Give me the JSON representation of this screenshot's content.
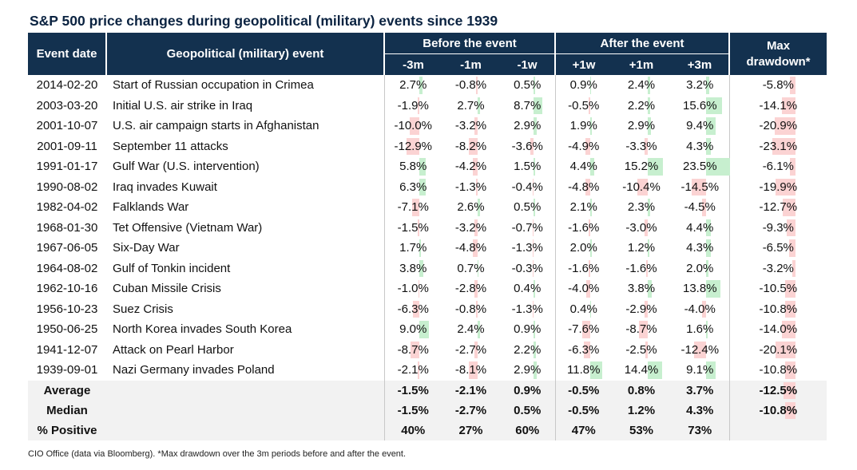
{
  "title": "S&P 500 price changes during geopolitical (military) events since 1939",
  "headers": {
    "event_date": "Event date",
    "event": "Geopolitical (military) event",
    "before": "Before the event",
    "after": "After the event",
    "max_dd": "Max drawdown*",
    "cols": [
      "-3m",
      "-1m",
      "-1w",
      "+1w",
      "+1m",
      "+3m"
    ]
  },
  "colors": {
    "header_bg": "#13314f",
    "positive": "#c7efcf",
    "negative": "#fbd3d3",
    "summary_bg": "#f2f2f2"
  },
  "rows": [
    {
      "date": "2014-02-20",
      "event": "Start of Russian occupation in Crimea",
      "vals": [
        "2.7%",
        "-0.8%",
        "0.5%",
        "0.9%",
        "2.4%",
        "3.2%"
      ],
      "dd": "-5.8%"
    },
    {
      "date": "2003-03-20",
      "event": "Initial U.S. air strike in Iraq",
      "vals": [
        "-1.9%",
        "2.7%",
        "8.7%",
        "-0.5%",
        "2.2%",
        "15.6%"
      ],
      "dd": "-14.1%"
    },
    {
      "date": "2001-10-07",
      "event": "U.S. air campaign starts in Afghanistan",
      "vals": [
        "-10.0%",
        "-3.2%",
        "2.9%",
        "1.9%",
        "2.9%",
        "9.4%"
      ],
      "dd": "-20.9%"
    },
    {
      "date": "2001-09-11",
      "event": "September 11 attacks",
      "vals": [
        "-12.9%",
        "-8.2%",
        "-3.6%",
        "-4.9%",
        "-3.3%",
        "4.3%"
      ],
      "dd": "-23.1%"
    },
    {
      "date": "1991-01-17",
      "event": "Gulf War (U.S. intervention)",
      "vals": [
        "5.8%",
        "-4.2%",
        "1.5%",
        "4.4%",
        "15.2%",
        "23.5%"
      ],
      "dd": "-6.1%"
    },
    {
      "date": "1990-08-02",
      "event": "Iraq invades Kuwait",
      "vals": [
        "6.3%",
        "-1.3%",
        "-0.4%",
        "-4.8%",
        "-10.4%",
        "-14.5%"
      ],
      "dd": "-19.9%"
    },
    {
      "date": "1982-04-02",
      "event": "Falklands War",
      "vals": [
        "-7.1%",
        "2.6%",
        "0.5%",
        "2.1%",
        "2.3%",
        "-4.5%"
      ],
      "dd": "-12.7%"
    },
    {
      "date": "1968-01-30",
      "event": "Tet Offensive (Vietnam War)",
      "vals": [
        "-1.5%",
        "-3.2%",
        "-0.7%",
        "-1.6%",
        "-3.0%",
        "4.4%"
      ],
      "dd": "-9.3%"
    },
    {
      "date": "1967-06-05",
      "event": "Six-Day War",
      "vals": [
        "1.7%",
        "-4.8%",
        "-1.3%",
        "2.0%",
        "1.2%",
        "4.3%"
      ],
      "dd": "-6.5%"
    },
    {
      "date": "1964-08-02",
      "event": "Gulf of Tonkin incident",
      "vals": [
        "3.8%",
        "0.7%",
        "-0.3%",
        "-1.6%",
        "-1.6%",
        "2.0%"
      ],
      "dd": "-3.2%"
    },
    {
      "date": "1962-10-16",
      "event": "Cuban Missile Crisis",
      "vals": [
        "-1.0%",
        "-2.8%",
        "0.4%",
        "-4.0%",
        "3.8%",
        "13.8%"
      ],
      "dd": "-10.5%"
    },
    {
      "date": "1956-10-23",
      "event": "Suez Crisis",
      "vals": [
        "-6.3%",
        "-0.8%",
        "-1.3%",
        "0.4%",
        "-2.9%",
        "-4.0%"
      ],
      "dd": "-10.8%"
    },
    {
      "date": "1950-06-25",
      "event": "North Korea invades South Korea",
      "vals": [
        "9.0%",
        "2.4%",
        "0.9%",
        "-7.6%",
        "-8.7%",
        "1.6%"
      ],
      "dd": "-14.0%"
    },
    {
      "date": "1941-12-07",
      "event": "Attack on Pearl Harbor",
      "vals": [
        "-8.7%",
        "-2.7%",
        "2.2%",
        "-6.3%",
        "-2.5%",
        "-12.4%"
      ],
      "dd": "-20.1%"
    },
    {
      "date": "1939-09-01",
      "event": "Nazi Germany invades Poland",
      "vals": [
        "-2.1%",
        "-8.1%",
        "2.9%",
        "11.8%",
        "14.4%",
        "9.1%"
      ],
      "dd": "-10.8%"
    }
  ],
  "summary": [
    {
      "label": "Average",
      "vals": [
        "-1.5%",
        "-2.1%",
        "0.9%",
        "-0.5%",
        "0.8%",
        "3.7%"
      ],
      "dd": "-12.5%"
    },
    {
      "label": "Median",
      "vals": [
        "-1.5%",
        "-2.7%",
        "0.5%",
        "-0.5%",
        "1.2%",
        "4.3%"
      ],
      "dd": "-10.8%"
    },
    {
      "label": "% Positive",
      "vals": [
        "40%",
        "27%",
        "60%",
        "47%",
        "53%",
        "73%"
      ],
      "dd": ""
    }
  ],
  "footnote": "CIO Office (data via Bloomberg). *Max drawdown over the 3m periods before and after the event."
}
